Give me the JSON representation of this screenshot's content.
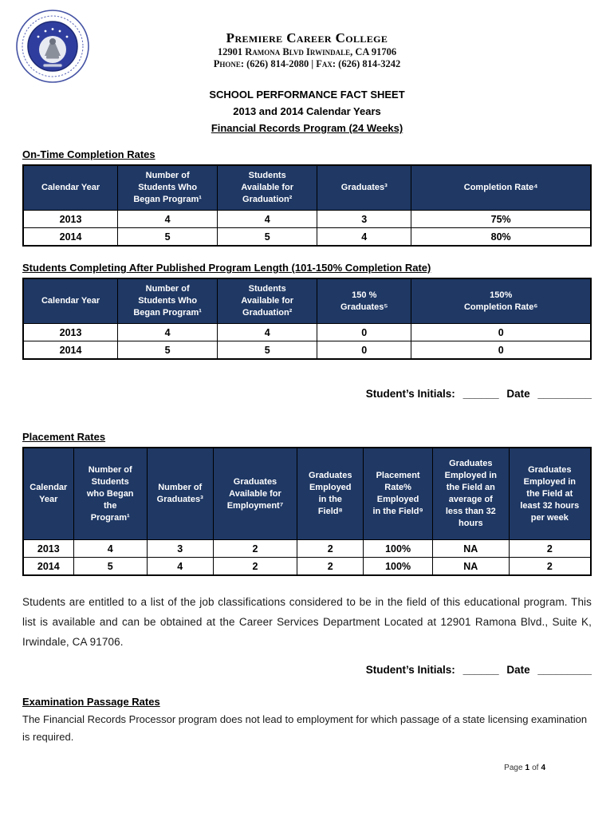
{
  "colors": {
    "table_header_bg": "#1f3864",
    "table_header_fg": "#ffffff",
    "seal_blue": "#2f3e9e",
    "seal_ring": "#4553a4"
  },
  "header": {
    "college_name": "Premiere Career College",
    "address": "12901 Ramona Blvd Irwindale, CA 91706",
    "phone_fax": "Phone: (626) 814-2080 | Fax: (626) 814-3242",
    "fact_sheet_title": "SCHOOL PERFORMANCE FACT SHEET",
    "years_subtitle": "2013 and 2014 Calendar Years",
    "program_subtitle": "Financial Records Program (24 Weeks)"
  },
  "sections": {
    "on_time": {
      "heading": "On-Time Completion Rates",
      "table": {
        "headers": [
          "Calendar Year",
          "Number of\nStudents Who\nBegan Program¹",
          "Students\nAvailable for\nGraduation²",
          "Graduates³",
          "Completion Rate⁴"
        ],
        "rows": [
          [
            "2013",
            "4",
            "4",
            "3",
            "75%"
          ],
          [
            "2014",
            "5",
            "5",
            "4",
            "80%"
          ]
        ]
      }
    },
    "after_published": {
      "heading": "Students Completing After Published Program Length (101-150% Completion Rate)",
      "table": {
        "headers": [
          "Calendar Year",
          "Number of\nStudents Who\nBegan Program¹",
          "Students\nAvailable for\nGraduation²",
          "150 %\nGraduates⁵",
          "150%\nCompletion Rate⁶"
        ],
        "rows": [
          [
            "2013",
            "4",
            "4",
            "0",
            "0"
          ],
          [
            "2014",
            "5",
            "5",
            "0",
            "0"
          ]
        ]
      }
    },
    "placement": {
      "heading": "Placement Rates",
      "table": {
        "headers": [
          "Calendar\nYear",
          "Number of\nStudents\nwho Began\nthe\nProgram¹",
          "Number of\nGraduates³",
          "Graduates\nAvailable for\nEmployment⁷",
          "Graduates\nEmployed\nin the\nField⁸",
          "Placement\nRate%\nEmployed\nin the Field⁹",
          "Graduates\nEmployed in\nthe Field an\naverage of\nless than 32\nhours",
          "Graduates\nEmployed in\nthe Field at\nleast 32 hours\nper week"
        ],
        "rows": [
          [
            "2013",
            "4",
            "3",
            "2",
            "2",
            "100%",
            "NA",
            "2"
          ],
          [
            "2014",
            "5",
            "4",
            "2",
            "2",
            "100%",
            "NA",
            "2"
          ]
        ]
      },
      "note": "Students are entitled to a list of the job classifications considered to be in the field of this educational program. This list is available and can be obtained at the Career Services Department Located at 12901 Ramona Blvd., Suite K, Irwindale, CA 91706."
    },
    "examination": {
      "heading": "Examination Passage Rates",
      "body": "The Financial Records Processor program does not lead to employment for which passage of a state licensing examination is required."
    }
  },
  "initials": {
    "label": "Student’s Initials:",
    "blank": "______",
    "date_label": "Date",
    "date_blank": "_________"
  },
  "footer": {
    "page_label": "Page",
    "page_number": "1",
    "of_label": "of",
    "total_pages": "4"
  }
}
